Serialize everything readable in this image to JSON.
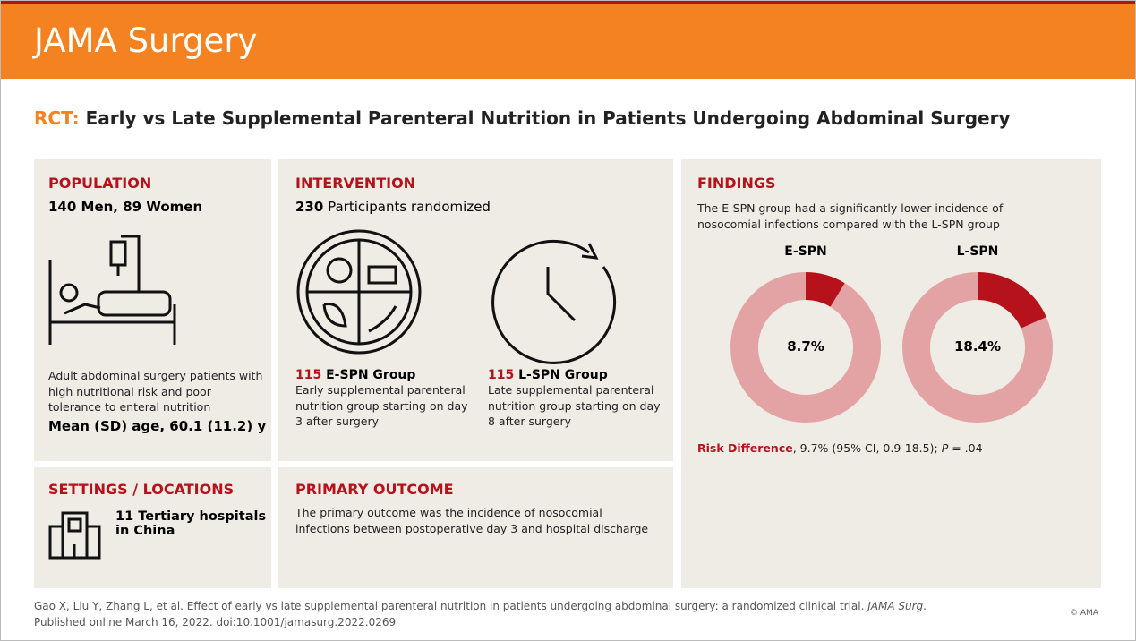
{
  "header": {
    "brand": "JAMA Surgery"
  },
  "title": {
    "prefix": "RCT:",
    "text": "Early vs Late Supplemental Parenteral Nutrition in Patients Undergoing Abdominal Surgery"
  },
  "population": {
    "heading": "POPULATION",
    "summary": "140 Men, 89 Women",
    "description": "Adult abdominal surgery patients with high nutritional risk and poor tolerance to enteral nutrition",
    "age": "Mean (SD) age, 60.1 (11.2) y"
  },
  "intervention": {
    "heading": "INTERVENTION",
    "count": "230",
    "count_label": "Participants randomized",
    "groups": [
      {
        "count": "115",
        "name": "E-SPN Group",
        "description": "Early supplemental parenteral nutrition group starting on day 3 after surgery"
      },
      {
        "count": "115",
        "name": "L-SPN Group",
        "description": "Late supplemental parenteral nutrition group starting on day 8 after surgery"
      }
    ]
  },
  "settings": {
    "heading": "SETTINGS / LOCATIONS",
    "text": "11 Tertiary hospitals in China"
  },
  "primary_outcome": {
    "heading": "PRIMARY OUTCOME",
    "text": "The primary outcome was the incidence of nosocomial infections between postoperative day 3 and hospital discharge"
  },
  "findings": {
    "heading": "FINDINGS",
    "text": "The E-SPN group had a significantly lower incidence of nosocomial infections compared with the L-SPN group",
    "charts": [
      {
        "label": "E-SPN",
        "value": 8.7,
        "value_label": "8.7%"
      },
      {
        "label": "L-SPN",
        "value": 18.4,
        "value_label": "18.4%"
      }
    ],
    "risk": {
      "label": "Risk Difference",
      "text": ", 9.7% (95% CI, 0.9-18.5);",
      "p_symbol": "P",
      "p_value": "= .04"
    }
  },
  "citation": {
    "text": "Gao X, Liu Y, Zhang L, et al. Effect of early vs late supplemental parenteral nutrition in patients undergoing abdominal surgery: a randomized clinical trial.",
    "journal": "JAMA Surg",
    "end": ".",
    "published": "Published online March 16, 2022. doi:10.1001/jamasurg.2022.0269"
  },
  "copyright": "© AMA"
}
